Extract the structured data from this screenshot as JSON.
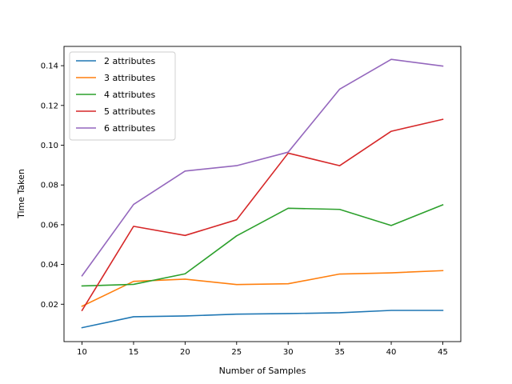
{
  "chart_data": {
    "type": "line",
    "title": "",
    "xlabel": "Number of Samples",
    "ylabel": "Time Taken",
    "x": [
      10,
      15,
      20,
      25,
      30,
      35,
      40,
      45
    ],
    "xlim": [
      8.25,
      46.75
    ],
    "ylim": [
      0.0012,
      0.1497
    ],
    "xticks": [
      10,
      15,
      20,
      25,
      30,
      35,
      40,
      45
    ],
    "yticks": [
      0.02,
      0.04,
      0.06,
      0.08,
      0.1,
      0.12,
      0.14
    ],
    "ytick_labels": [
      "0.02",
      "0.04",
      "0.06",
      "0.08",
      "0.10",
      "0.12",
      "0.14"
    ],
    "grid": false,
    "legend_position": "top-left",
    "series": [
      {
        "name": "2 attributes",
        "color": "#1f77b4",
        "values": [
          0.0082,
          0.0137,
          0.0141,
          0.015,
          0.0153,
          0.0157,
          0.0169,
          0.0169
        ]
      },
      {
        "name": "3 attributes",
        "color": "#ff7f0e",
        "values": [
          0.019,
          0.0315,
          0.0326,
          0.0299,
          0.0303,
          0.0352,
          0.0358,
          0.0369
        ]
      },
      {
        "name": "4 attributes",
        "color": "#2ca02c",
        "values": [
          0.0292,
          0.03,
          0.0353,
          0.0544,
          0.0683,
          0.0677,
          0.0596,
          0.07
        ]
      },
      {
        "name": "5 attributes",
        "color": "#d62728",
        "values": [
          0.0169,
          0.0592,
          0.0546,
          0.0625,
          0.096,
          0.0897,
          0.107,
          0.113
        ]
      },
      {
        "name": "6 attributes",
        "color": "#9467bd",
        "values": [
          0.0343,
          0.0702,
          0.087,
          0.0897,
          0.0965,
          0.1282,
          0.1432,
          0.1398
        ]
      }
    ]
  }
}
